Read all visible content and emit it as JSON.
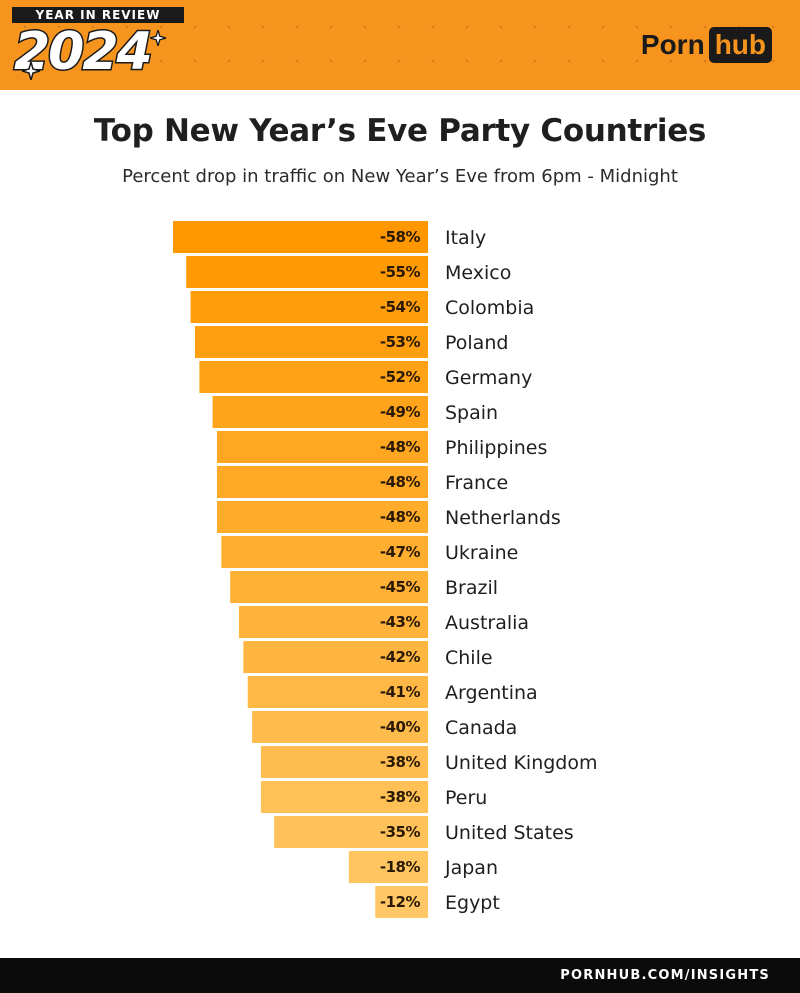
{
  "header": {
    "tag": "YEAR IN REVIEW",
    "year": "2024",
    "logo_left": "Porn",
    "logo_right": "hub",
    "colors": {
      "band": "#f7941e",
      "dark": "#1a1a1a"
    }
  },
  "title": "Top New Year’s Eve Party Countries",
  "subtitle": "Percent drop in traffic on New Year’s Eve from 6pm - Midnight",
  "chart_data": {
    "type": "bar",
    "orientation": "horizontal",
    "categories": [
      "Italy",
      "Mexico",
      "Colombia",
      "Poland",
      "Germany",
      "Spain",
      "Philippines",
      "France",
      "Netherlands",
      "Ukraine",
      "Brazil",
      "Australia",
      "Chile",
      "Argentina",
      "Canada",
      "United Kingdom",
      "Peru",
      "United States",
      "Japan",
      "Egypt"
    ],
    "values": [
      -58,
      -55,
      -54,
      -53,
      -52,
      -49,
      -48,
      -48,
      -48,
      -47,
      -45,
      -43,
      -42,
      -41,
      -40,
      -38,
      -38,
      -35,
      -18,
      -12
    ],
    "labels": [
      "-58%",
      "-55%",
      "-54%",
      "-53%",
      "-52%",
      "-49%",
      "-48%",
      "-48%",
      "-48%",
      "-47%",
      "-45%",
      "-43%",
      "-42%",
      "-41%",
      "-40%",
      "-38%",
      "-38%",
      "-35%",
      "-18%",
      "-12%"
    ],
    "unit": "%",
    "xlim": [
      -58,
      0
    ],
    "grid": false,
    "colors": {
      "strongest": "#ff9800",
      "weakest": "#ffc766"
    }
  },
  "footer": {
    "text": "PORNHUB.COM/INSIGHTS"
  }
}
